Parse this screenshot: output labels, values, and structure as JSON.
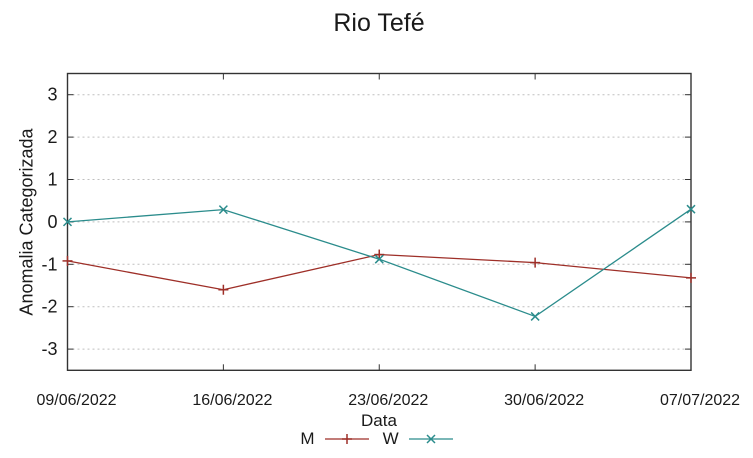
{
  "chart_data": {
    "type": "line",
    "title": "Rio Tefé",
    "xlabel": "Data",
    "ylabel": "Anomalia Categorizada",
    "categories": [
      "09/06/2022",
      "16/06/2022",
      "23/06/2022",
      "30/06/2022",
      "07/07/2022"
    ],
    "ylim": [
      -3.5,
      3.5
    ],
    "yticks": [
      -3,
      -2,
      -1,
      0,
      1,
      2,
      3
    ],
    "grid": {
      "horizontal": true,
      "style": "dashed",
      "color": "#bfbfbf"
    },
    "legend_position": "bottom-center",
    "series": [
      {
        "name": "M",
        "color": "#9e2f28",
        "marker": "plus",
        "values": [
          -0.92,
          -1.6,
          -0.77,
          -0.96,
          -1.32
        ]
      },
      {
        "name": "W",
        "color": "#2b8c8c",
        "marker": "cross",
        "values": [
          0.0,
          0.29,
          -0.88,
          -2.23,
          0.3
        ]
      }
    ],
    "colors": {
      "border": "#333333",
      "text": "#1a1a1a",
      "background": "#ffffff"
    }
  }
}
